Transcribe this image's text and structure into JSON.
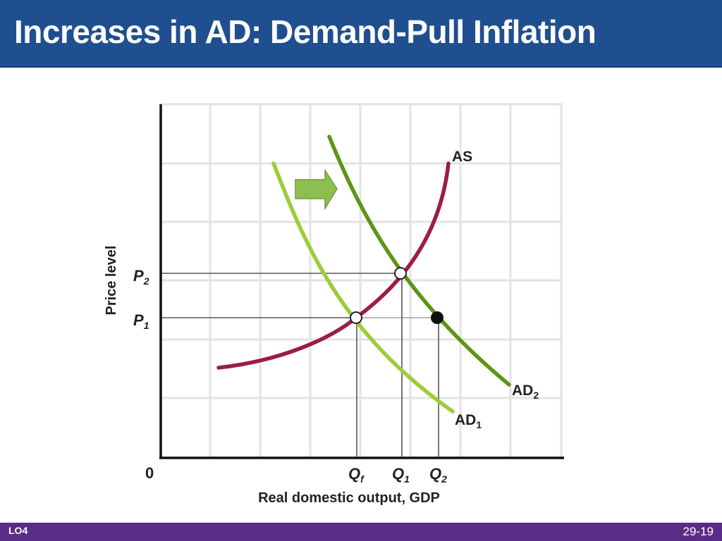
{
  "slide": {
    "title": "Increases in AD: Demand-Pull Inflation",
    "footer_left": "LO4",
    "footer_right": "29-19"
  },
  "diagram": {
    "y_axis_label": "Price level",
    "x_axis_label": "Real domestic output, GDP",
    "origin_label": "0",
    "price_labels": {
      "p2": {
        "letter": "P",
        "sub": "2"
      },
      "p1": {
        "letter": "P",
        "sub": "1"
      }
    },
    "quantity_labels": {
      "qf": {
        "letter": "Q",
        "sub": "f"
      },
      "q1": {
        "letter": "Q",
        "sub": "1"
      },
      "q2": {
        "letter": "Q",
        "sub": "2"
      }
    },
    "curve_labels": {
      "as": "AS",
      "ad1": {
        "text": "AD",
        "sub": "1"
      },
      "ad2": {
        "text": "AD",
        "sub": "2"
      }
    },
    "colors": {
      "as": "#9b1d45",
      "ad1": "#9ccc3a",
      "ad2": "#5f9416",
      "arrow": "#8cbf50",
      "grid": "#e3e3e3"
    }
  }
}
